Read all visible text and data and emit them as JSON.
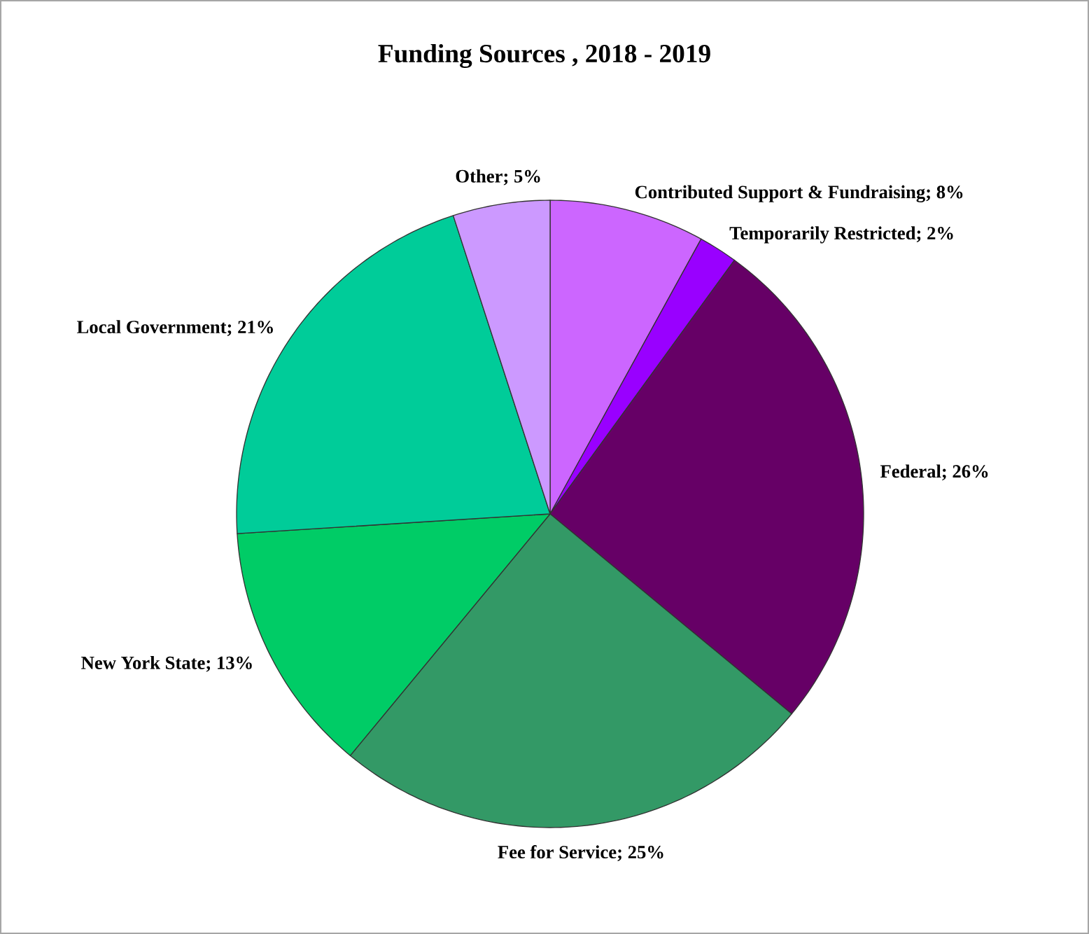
{
  "chart_data": {
    "type": "pie",
    "title": "Funding Sources , 2018 - 2019",
    "categories": [
      "Contributed Support & Fundraising; 8%",
      "Temporarily Restricted; 2%",
      "Federal; 26%",
      "Fee for Service; 25%",
      "New York State; 13%",
      "Local Government; 21%",
      "Other; 5%"
    ],
    "values": [
      8,
      2,
      26,
      25,
      13,
      21,
      5
    ],
    "colors": [
      "#cc66ff",
      "#9900ff",
      "#660066",
      "#339966",
      "#00cc66",
      "#00cc99",
      "#cc99ff"
    ]
  }
}
